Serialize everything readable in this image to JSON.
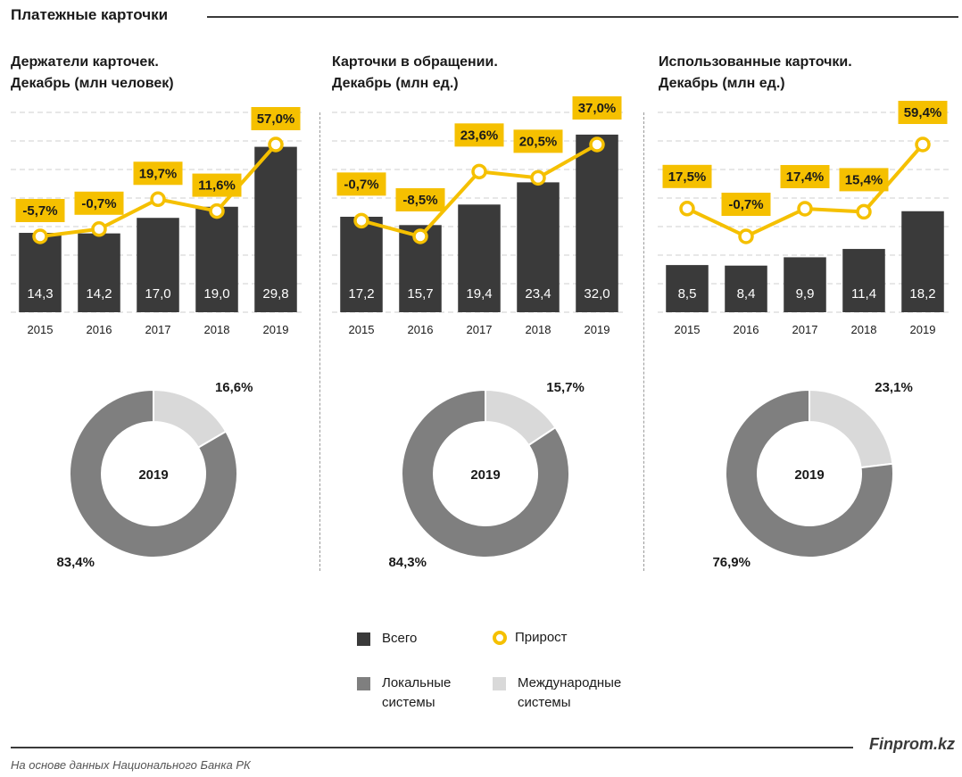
{
  "header": {
    "title": "Платежные карточки"
  },
  "colors": {
    "bar": "#3a3a3a",
    "line": "#f5c000",
    "label_bg": "#f5c000",
    "local": "#7f7f7f",
    "international": "#d9d9d9"
  },
  "chart_data": [
    {
      "type": "bar",
      "title": "Держатели карточек.\nДекабрь (млн человек)",
      "categories": [
        "2015",
        "2016",
        "2017",
        "2018",
        "2019"
      ],
      "series": [
        {
          "name": "Всего",
          "values": [
            14.3,
            14.2,
            17.0,
            19.0,
            29.8
          ],
          "labels": [
            "14,3",
            "14,2",
            "17,0",
            "19,0",
            "29,8"
          ]
        },
        {
          "name": "Прирост",
          "values": [
            -5.7,
            -0.7,
            19.7,
            11.6,
            57.0
          ],
          "labels": [
            "-5,7%",
            "-0,7%",
            "19,7%",
            "11,6%",
            "57,0%"
          ]
        }
      ],
      "donut": {
        "center_label": "2019",
        "local": 83.4,
        "international": 16.6,
        "local_label": "83,4%",
        "international_label": "16,6%"
      }
    },
    {
      "type": "bar",
      "title": "Карточки  в обращении.\nДекабрь (млн ед.)",
      "categories": [
        "2015",
        "2016",
        "2017",
        "2018",
        "2019"
      ],
      "series": [
        {
          "name": "Всего",
          "values": [
            17.2,
            15.7,
            19.4,
            23.4,
            32.0
          ],
          "labels": [
            "17,2",
            "15,7",
            "19,4",
            "23,4",
            "32,0"
          ]
        },
        {
          "name": "Прирост",
          "values": [
            -0.7,
            -8.5,
            23.6,
            20.5,
            37.0
          ],
          "labels": [
            "-0,7%",
            "-8,5%",
            "23,6%",
            "20,5%",
            "37,0%"
          ]
        }
      ],
      "donut": {
        "center_label": "2019",
        "local": 84.3,
        "international": 15.7,
        "local_label": "84,3%",
        "international_label": "15,7%"
      }
    },
    {
      "type": "bar",
      "title": "Использованные  карточки.\nДекабрь (млн ед.)",
      "categories": [
        "2015",
        "2016",
        "2017",
        "2018",
        "2019"
      ],
      "series": [
        {
          "name": "Всего",
          "values": [
            8.5,
            8.4,
            9.9,
            11.4,
            18.2
          ],
          "labels": [
            "8,5",
            "8,4",
            "9,9",
            "11,4",
            "18,2"
          ]
        },
        {
          "name": "Прирост",
          "values": [
            17.5,
            -0.7,
            17.4,
            15.4,
            59.4
          ],
          "labels": [
            "17,5%",
            "-0,7%",
            "17,4%",
            "15,4%",
            "59,4%"
          ]
        }
      ],
      "donut": {
        "center_label": "2019",
        "local": 76.9,
        "international": 23.1,
        "local_label": "76,9%",
        "international_label": "23,1%"
      }
    }
  ],
  "legend": {
    "total": "Всего",
    "growth": "Прирост",
    "local": "Локальные\nсистемы",
    "international": "Международные\nсистемы"
  },
  "footer": {
    "brand": "Finprom.kz",
    "source": "На основе данных Национального  Банка РК"
  }
}
